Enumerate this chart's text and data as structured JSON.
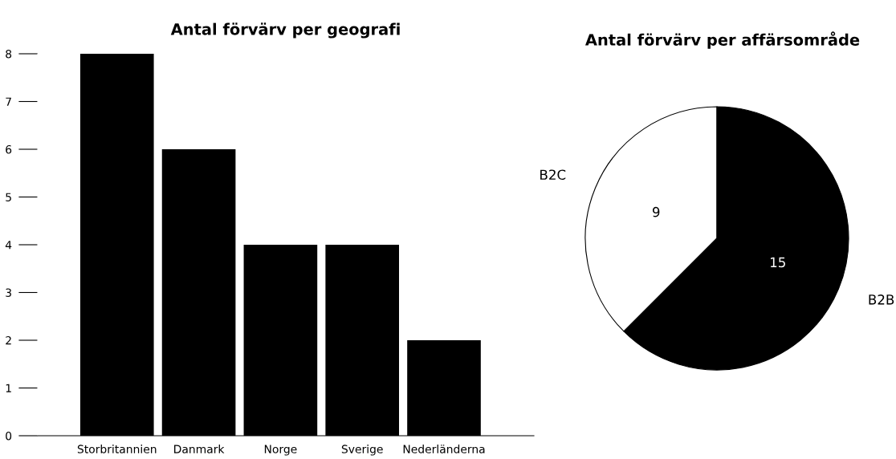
{
  "chart_data": [
    {
      "type": "bar",
      "title": "Antal förvärv per geografi",
      "categories": [
        "Storbritannien",
        "Danmark",
        "Norge",
        "Sverige",
        "Nederländerna"
      ],
      "values": [
        8,
        6,
        4,
        4,
        2
      ],
      "color": "#000000",
      "ylim": [
        0,
        8
      ],
      "yticks": [
        0,
        1,
        2,
        3,
        4,
        5,
        6,
        7,
        8
      ],
      "grid": false,
      "legend": false
    },
    {
      "type": "pie",
      "title": "Antal förvärv per affärsområde",
      "categories": [
        "B2C",
        "B2B"
      ],
      "values": [
        9,
        15
      ],
      "colors": [
        "#ffffff",
        "#000000"
      ],
      "data_labels": true,
      "legend": false
    }
  ]
}
